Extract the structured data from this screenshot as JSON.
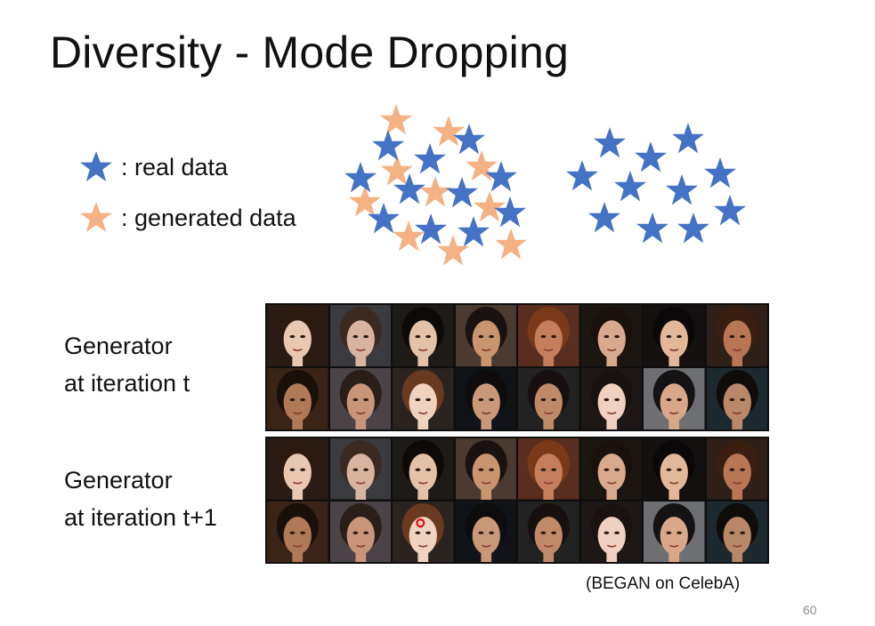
{
  "slide": {
    "title": "Diversity - Mode Dropping",
    "legend": {
      "real_label": ": real data",
      "generated_label": ": generated data"
    },
    "generator_t": {
      "line1": "Generator",
      "line2": "at iteration t"
    },
    "generator_t1": {
      "line1": "Generator",
      "line2": "at iteration t+1"
    },
    "caption": "(BEGAN on CelebA)",
    "page_number": "60"
  },
  "colors": {
    "real_star": "#4472c4",
    "generated_star": "#f4b183",
    "title_text": "#111111",
    "grid_border": "#0e0e0e"
  },
  "icons": {
    "real": "blue-star-icon",
    "generated": "orange-star-icon"
  }
}
